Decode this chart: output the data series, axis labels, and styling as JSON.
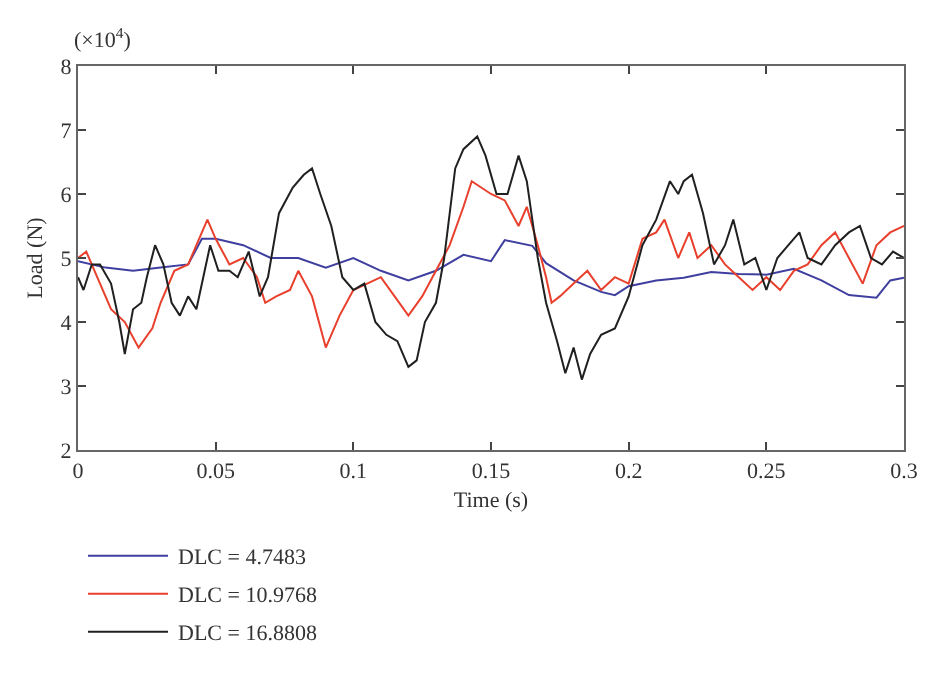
{
  "chart_data": {
    "type": "line",
    "xlabel": "Time (s)",
    "ylabel": "Load (N)",
    "annotations": [
      "(×10$^{4}$)"
    ],
    "xlim": [
      0,
      0.3
    ],
    "xticks": [
      0,
      0.05,
      0.1,
      0.15,
      0.2,
      0.25,
      0.3
    ],
    "ylim": [
      2,
      8
    ],
    "yticks": [
      2,
      3,
      4,
      5,
      6,
      7,
      8
    ],
    "grid": false,
    "legend": "bottom left",
    "marker": "none",
    "line_style": "solid",
    "series": [
      {
        "name": "DLC = 4.7483",
        "color": "#3f3fa0",
        "x": [
          0,
          0.01,
          0.02,
          0.03,
          0.04,
          0.045,
          0.05,
          0.06,
          0.07,
          0.08,
          0.09,
          0.1,
          0.11,
          0.12,
          0.13,
          0.14,
          0.15,
          0.155,
          0.165,
          0.17,
          0.18,
          0.19,
          0.195,
          0.2,
          0.21,
          0.22,
          0.23,
          0.24,
          0.25,
          0.26,
          0.27,
          0.28,
          0.29,
          0.295,
          0.3
        ],
        "values": [
          4.95,
          4.85,
          4.8,
          4.85,
          4.9,
          5.3,
          5.3,
          5.2,
          5.0,
          5.0,
          4.85,
          5.0,
          4.8,
          4.65,
          4.8,
          5.05,
          4.95,
          5.28,
          5.19,
          4.92,
          4.65,
          4.47,
          4.42,
          4.56,
          4.65,
          4.69,
          4.78,
          4.75,
          4.74,
          4.83,
          4.65,
          4.42,
          4.38,
          4.65,
          4.69
        ]
      },
      {
        "name": "DLC = 10.9768",
        "color": "#e8402c",
        "x": [
          0,
          0.003,
          0.008,
          0.012,
          0.017,
          0.022,
          0.027,
          0.03,
          0.035,
          0.04,
          0.045,
          0.047,
          0.05,
          0.055,
          0.06,
          0.065,
          0.068,
          0.072,
          0.077,
          0.08,
          0.085,
          0.09,
          0.095,
          0.1,
          0.105,
          0.11,
          0.115,
          0.12,
          0.125,
          0.13,
          0.135,
          0.14,
          0.143,
          0.15,
          0.155,
          0.16,
          0.163,
          0.167,
          0.17,
          0.172,
          0.175,
          0.18,
          0.185,
          0.19,
          0.195,
          0.2,
          0.205,
          0.21,
          0.213,
          0.218,
          0.222,
          0.225,
          0.23,
          0.235,
          0.24,
          0.245,
          0.25,
          0.255,
          0.26,
          0.265,
          0.27,
          0.275,
          0.28,
          0.285,
          0.29,
          0.295,
          0.3
        ],
        "values": [
          5.0,
          5.1,
          4.6,
          4.2,
          4.0,
          3.6,
          3.9,
          4.3,
          4.8,
          4.9,
          5.4,
          5.6,
          5.3,
          4.9,
          5.0,
          4.7,
          4.3,
          4.4,
          4.5,
          4.8,
          4.4,
          3.6,
          4.1,
          4.5,
          4.6,
          4.7,
          4.4,
          4.1,
          4.4,
          4.8,
          5.2,
          5.8,
          6.2,
          6.0,
          5.9,
          5.5,
          5.8,
          5.2,
          4.7,
          4.3,
          4.4,
          4.6,
          4.8,
          4.5,
          4.7,
          4.6,
          5.3,
          5.4,
          5.6,
          5.0,
          5.4,
          5.0,
          5.2,
          4.9,
          4.7,
          4.5,
          4.7,
          4.5,
          4.8,
          4.9,
          5.2,
          5.4,
          5.0,
          4.6,
          5.2,
          5.4,
          5.5
        ]
      },
      {
        "name": "DLC = 16.8808",
        "color": "#202020",
        "x": [
          0,
          0.002,
          0.005,
          0.008,
          0.012,
          0.015,
          0.017,
          0.02,
          0.023,
          0.025,
          0.028,
          0.031,
          0.034,
          0.037,
          0.04,
          0.043,
          0.046,
          0.048,
          0.051,
          0.055,
          0.058,
          0.062,
          0.066,
          0.069,
          0.073,
          0.078,
          0.082,
          0.085,
          0.088,
          0.092,
          0.096,
          0.1,
          0.104,
          0.108,
          0.112,
          0.116,
          0.12,
          0.123,
          0.126,
          0.13,
          0.133,
          0.137,
          0.14,
          0.145,
          0.148,
          0.152,
          0.156,
          0.16,
          0.163,
          0.167,
          0.17,
          0.174,
          0.177,
          0.18,
          0.183,
          0.186,
          0.19,
          0.195,
          0.2,
          0.205,
          0.21,
          0.215,
          0.218,
          0.22,
          0.223,
          0.227,
          0.231,
          0.235,
          0.238,
          0.242,
          0.246,
          0.25,
          0.254,
          0.258,
          0.262,
          0.265,
          0.27,
          0.275,
          0.28,
          0.284,
          0.288,
          0.292,
          0.296,
          0.3
        ],
        "values": [
          4.7,
          4.5,
          4.9,
          4.9,
          4.6,
          4.0,
          3.5,
          4.2,
          4.3,
          4.7,
          5.2,
          4.9,
          4.3,
          4.1,
          4.4,
          4.2,
          4.8,
          5.2,
          4.8,
          4.8,
          4.7,
          5.1,
          4.4,
          4.7,
          5.7,
          6.1,
          6.3,
          6.4,
          6.0,
          5.5,
          4.7,
          4.5,
          4.6,
          4.0,
          3.8,
          3.7,
          3.3,
          3.4,
          4.0,
          4.3,
          5.0,
          6.4,
          6.7,
          6.9,
          6.6,
          6.0,
          6.0,
          6.6,
          6.2,
          5.0,
          4.3,
          3.7,
          3.2,
          3.6,
          3.1,
          3.5,
          3.8,
          3.9,
          4.4,
          5.2,
          5.6,
          6.2,
          6.0,
          6.2,
          6.3,
          5.7,
          4.9,
          5.2,
          5.6,
          4.9,
          5.0,
          4.5,
          5.0,
          5.2,
          5.4,
          5.0,
          4.9,
          5.2,
          5.4,
          5.5,
          5.0,
          4.9,
          5.1,
          5.0
        ]
      }
    ]
  }
}
